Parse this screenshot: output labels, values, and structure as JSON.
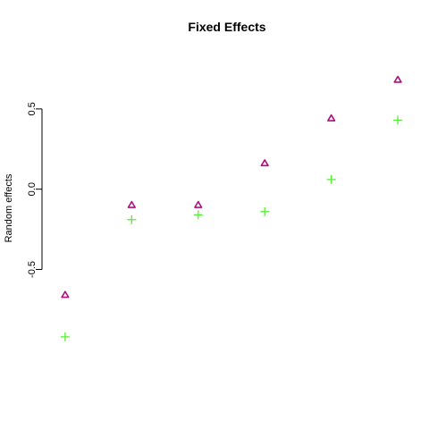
{
  "chart_data": {
    "type": "scatter",
    "title": "Fixed Effects",
    "xlabel": "",
    "ylabel": "Random effects",
    "xlim": [
      0.8,
      6.2
    ],
    "ylim": [
      -1.16,
      0.85
    ],
    "yticks": [
      {
        "value": -0.5,
        "label": "-0.5"
      },
      {
        "value": 0.0,
        "label": "0.0"
      },
      {
        "value": 0.5,
        "label": "0.5"
      }
    ],
    "grid": false,
    "legend": "none",
    "series": [
      {
        "marker": "triangle",
        "color": "#aa1080",
        "x": [
          1,
          2,
          3,
          4,
          5,
          6
        ],
        "y": [
          -0.66,
          -0.1,
          -0.1,
          0.16,
          0.44,
          0.68
        ]
      },
      {
        "marker": "plus",
        "color": "#55ee33",
        "x": [
          1,
          2,
          3,
          4,
          5,
          6
        ],
        "y": [
          -0.92,
          -0.19,
          -0.16,
          -0.14,
          0.06,
          0.43
        ]
      }
    ]
  }
}
